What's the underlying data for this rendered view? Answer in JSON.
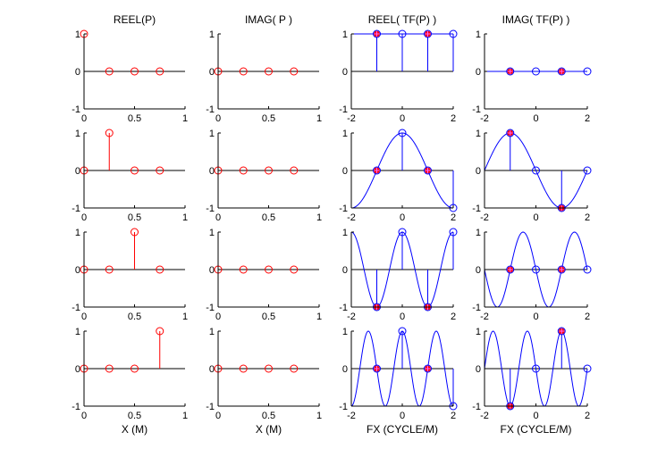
{
  "colors": {
    "time_series": "#ff0000",
    "freq_series": "#0000ff",
    "marker_fill": "#ff0000",
    "axis": "#000000",
    "background": "#ffffff"
  },
  "column_titles": [
    "REEL(P)",
    "IMAG( P )",
    "REEL( TF(P) )",
    "IMAG( TF(P) )"
  ],
  "column_xlabels": [
    "X (M)",
    "X (M)",
    "FX (CYCLE/M)",
    "FX (CYCLE/M)"
  ],
  "chart_data": [
    {
      "row": 0,
      "col": 0,
      "type": "stem",
      "xlim": [
        0,
        1
      ],
      "ylim": [
        -1,
        1
      ],
      "xticks": [
        "0",
        "0.5",
        "1"
      ],
      "yticks": [
        "-1",
        "0",
        "1"
      ],
      "x": [
        0,
        0.25,
        0.5,
        0.75
      ],
      "y": [
        1,
        0,
        0,
        0
      ]
    },
    {
      "row": 0,
      "col": 1,
      "type": "stem",
      "xlim": [
        0,
        1
      ],
      "ylim": [
        -1,
        1
      ],
      "xticks": [
        "0",
        "0.5",
        "1"
      ],
      "yticks": [
        "-1",
        "0",
        "1"
      ],
      "x": [
        0,
        0.25,
        0.5,
        0.75
      ],
      "y": [
        0,
        0,
        0,
        0
      ]
    },
    {
      "row": 0,
      "col": 2,
      "type": "stem+line",
      "xlim": [
        -2,
        2
      ],
      "ylim": [
        -1,
        1
      ],
      "xticks": [
        "-2",
        "0",
        "2"
      ],
      "yticks": [
        "-1",
        "0",
        "1"
      ],
      "x": [
        -1,
        0,
        1,
        2
      ],
      "y": [
        1,
        1,
        1,
        1
      ],
      "highlighted_x": [
        -1,
        1
      ],
      "curve": "cos(0*pi*x/2)"
    },
    {
      "row": 0,
      "col": 3,
      "type": "stem+line",
      "xlim": [
        -2,
        2
      ],
      "ylim": [
        -1,
        1
      ],
      "xticks": [
        "-2",
        "0",
        "2"
      ],
      "yticks": [
        "-1",
        "0",
        "1"
      ],
      "x": [
        -1,
        0,
        1,
        2
      ],
      "y": [
        0,
        0,
        0,
        0
      ],
      "highlighted_x": [
        -1,
        1
      ],
      "curve": "-sin(0*pi*x/2)"
    },
    {
      "row": 1,
      "col": 0,
      "type": "stem",
      "xlim": [
        0,
        1
      ],
      "ylim": [
        -1,
        1
      ],
      "xticks": [
        "0",
        "0.5",
        "1"
      ],
      "yticks": [
        "-1",
        "0",
        "1"
      ],
      "x": [
        0,
        0.25,
        0.5,
        0.75
      ],
      "y": [
        0,
        1,
        0,
        0
      ]
    },
    {
      "row": 1,
      "col": 1,
      "type": "stem",
      "xlim": [
        0,
        1
      ],
      "ylim": [
        -1,
        1
      ],
      "xticks": [
        "0",
        "0.5",
        "1"
      ],
      "yticks": [
        "-1",
        "0",
        "1"
      ],
      "x": [
        0,
        0.25,
        0.5,
        0.75
      ],
      "y": [
        0,
        0,
        0,
        0
      ]
    },
    {
      "row": 1,
      "col": 2,
      "type": "stem+line",
      "xlim": [
        -2,
        2
      ],
      "ylim": [
        -1,
        1
      ],
      "xticks": [
        "-2",
        "0",
        "2"
      ],
      "yticks": [
        "-1",
        "0",
        "1"
      ],
      "x": [
        -1,
        0,
        1,
        2
      ],
      "y": [
        0,
        1,
        0,
        -1
      ],
      "highlighted_x": [
        -1,
        1
      ],
      "curve": "cos(1*pi*x/2)"
    },
    {
      "row": 1,
      "col": 3,
      "type": "stem+line",
      "xlim": [
        -2,
        2
      ],
      "ylim": [
        -1,
        1
      ],
      "xticks": [
        "-2",
        "0",
        "2"
      ],
      "yticks": [
        "-1",
        "0",
        "1"
      ],
      "x": [
        -1,
        0,
        1,
        2
      ],
      "y": [
        1,
        0,
        -1,
        0
      ],
      "highlighted_x": [
        -1,
        1
      ],
      "curve": "-sin(1*pi*x/2)"
    },
    {
      "row": 2,
      "col": 0,
      "type": "stem",
      "xlim": [
        0,
        1
      ],
      "ylim": [
        -1,
        1
      ],
      "xticks": [
        "0",
        "0.5",
        "1"
      ],
      "yticks": [
        "-1",
        "0",
        "1"
      ],
      "x": [
        0,
        0.25,
        0.5,
        0.75
      ],
      "y": [
        0,
        0,
        1,
        0
      ]
    },
    {
      "row": 2,
      "col": 1,
      "type": "stem",
      "xlim": [
        0,
        1
      ],
      "ylim": [
        -1,
        1
      ],
      "xticks": [
        "0",
        "0.5",
        "1"
      ],
      "yticks": [
        "-1",
        "0",
        "1"
      ],
      "x": [
        0,
        0.25,
        0.5,
        0.75
      ],
      "y": [
        0,
        0,
        0,
        0
      ]
    },
    {
      "row": 2,
      "col": 2,
      "type": "stem+line",
      "xlim": [
        -2,
        2
      ],
      "ylim": [
        -1,
        1
      ],
      "xticks": [
        "-2",
        "0",
        "2"
      ],
      "yticks": [
        "-1",
        "0",
        "1"
      ],
      "x": [
        -1,
        0,
        1,
        2
      ],
      "y": [
        -1,
        1,
        -1,
        1
      ],
      "highlighted_x": [
        -1,
        1
      ],
      "curve": "cos(2*pi*x/2)"
    },
    {
      "row": 2,
      "col": 3,
      "type": "stem+line",
      "xlim": [
        -2,
        2
      ],
      "ylim": [
        -1,
        1
      ],
      "xticks": [
        "-2",
        "0",
        "2"
      ],
      "yticks": [
        "-1",
        "0",
        "1"
      ],
      "x": [
        -1,
        0,
        1,
        2
      ],
      "y": [
        0,
        0,
        0,
        0
      ],
      "highlighted_x": [
        -1,
        1
      ],
      "curve": "-sin(2*pi*x/2)"
    },
    {
      "row": 3,
      "col": 0,
      "type": "stem",
      "xlim": [
        0,
        1
      ],
      "ylim": [
        -1,
        1
      ],
      "xticks": [
        "0",
        "0.5",
        "1"
      ],
      "yticks": [
        "-1",
        "0",
        "1"
      ],
      "x": [
        0,
        0.25,
        0.5,
        0.75
      ],
      "y": [
        0,
        0,
        0,
        1
      ]
    },
    {
      "row": 3,
      "col": 1,
      "type": "stem",
      "xlim": [
        0,
        1
      ],
      "ylim": [
        -1,
        1
      ],
      "xticks": [
        "0",
        "0.5",
        "1"
      ],
      "yticks": [
        "-1",
        "0",
        "1"
      ],
      "x": [
        0,
        0.25,
        0.5,
        0.75
      ],
      "y": [
        0,
        0,
        0,
        0
      ]
    },
    {
      "row": 3,
      "col": 2,
      "type": "stem+line",
      "xlim": [
        -2,
        2
      ],
      "ylim": [
        -1,
        1
      ],
      "xticks": [
        "-2",
        "0",
        "2"
      ],
      "yticks": [
        "-1",
        "0",
        "1"
      ],
      "x": [
        -1,
        0,
        1,
        2
      ],
      "y": [
        0,
        1,
        0,
        -1
      ],
      "highlighted_x": [
        -1,
        1
      ],
      "curve": "cos(3*pi*x/2)"
    },
    {
      "row": 3,
      "col": 3,
      "type": "stem+line",
      "xlim": [
        -2,
        2
      ],
      "ylim": [
        -1,
        1
      ],
      "xticks": [
        "-2",
        "0",
        "2"
      ],
      "yticks": [
        "-1",
        "0",
        "1"
      ],
      "x": [
        -1,
        0,
        1,
        2
      ],
      "y": [
        -1,
        0,
        1,
        0
      ],
      "highlighted_x": [
        -1,
        1
      ],
      "curve": "-sin(3*pi*x/2)"
    }
  ]
}
